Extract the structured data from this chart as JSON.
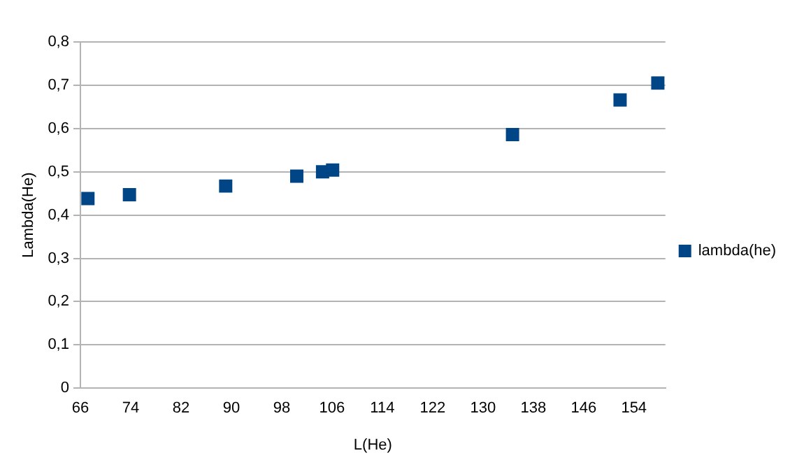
{
  "chart_data": {
    "type": "scatter",
    "xlabel": "L(He)",
    "ylabel": "Lambda(He)",
    "x": [
      67.2,
      73.8,
      89.1,
      100.4,
      104.5,
      106.1,
      134.7,
      151.8,
      157.8
    ],
    "series": [
      {
        "name": "lambda(he)",
        "color": "#004586",
        "values": [
          0.438,
          0.447,
          0.467,
          0.49,
          0.5,
          0.504,
          0.586,
          0.666,
          0.705
        ]
      }
    ],
    "xlim": [
      66,
      159
    ],
    "xticks": [
      66,
      74,
      82,
      90,
      98,
      106,
      114,
      122,
      130,
      138,
      146,
      154
    ],
    "ylim": [
      0,
      0.8
    ],
    "yticks": [
      0,
      {
        "value": 0.1,
        "label": "0,1"
      },
      {
        "value": 0.2,
        "label": "0,2"
      },
      {
        "value": 0.3,
        "label": "0,3"
      },
      {
        "value": 0.4,
        "label": "0,4"
      },
      {
        "value": 0.5,
        "label": "0,5"
      },
      {
        "value": 0.6,
        "label": "0,6"
      },
      {
        "value": 0.7,
        "label": "0,7"
      },
      {
        "value": 0.8,
        "label": "0,8"
      }
    ],
    "grid": "y",
    "legend": "right",
    "marker": "square"
  }
}
